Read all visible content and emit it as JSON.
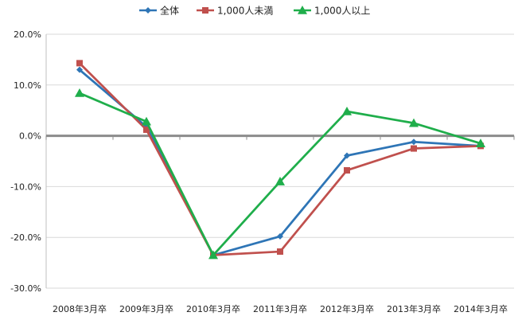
{
  "chart_data": {
    "type": "line",
    "title": "",
    "xlabel": "",
    "ylabel": "",
    "categories": [
      "2008年3月卒",
      "2009年3月卒",
      "2010年3月卒",
      "2011年3月卒",
      "2012年3月卒",
      "2013年3月卒",
      "2014年3月卒"
    ],
    "y_ticks": [
      "20.0%",
      "10.0%",
      "0.0%",
      "-10.0%",
      "-20.0%",
      "-30.0%"
    ],
    "ylim": [
      -30,
      20
    ],
    "y_unit": "%",
    "grid": true,
    "legend_position": "top",
    "series": [
      {
        "name": "全体",
        "color": "#2E75B6",
        "marker": "diamond",
        "values": [
          13.0,
          1.8,
          -23.5,
          -19.8,
          -3.9,
          -1.2,
          -2.0
        ]
      },
      {
        "name": "1,000人未満",
        "color": "#C0504D",
        "marker": "square",
        "values": [
          14.3,
          1.2,
          -23.5,
          -22.8,
          -6.8,
          -2.5,
          -2.0
        ]
      },
      {
        "name": "1,000人以上",
        "color": "#1FAE4B",
        "marker": "triangle",
        "values": [
          8.4,
          2.8,
          -23.5,
          -9.0,
          4.8,
          2.5,
          -1.5
        ]
      }
    ]
  }
}
